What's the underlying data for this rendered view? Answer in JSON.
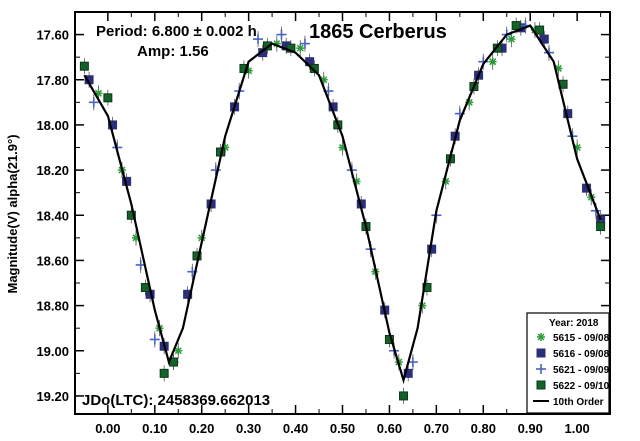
{
  "chart_data": {
    "type": "scatter",
    "title": "1865 Cerberus",
    "ylabel": "Magnitude(V) alpha(21.9°)",
    "xlabel": "",
    "xlim": [
      -0.07,
      1.07
    ],
    "ylim": [
      17.5,
      19.28
    ],
    "y_inverted": true,
    "x_ticks": [
      "0.00",
      "0.10",
      "0.20",
      "0.30",
      "0.40",
      "0.50",
      "0.60",
      "0.70",
      "0.80",
      "0.90",
      "1.00"
    ],
    "y_ticks": [
      "17.60",
      "17.80",
      "18.00",
      "18.20",
      "18.40",
      "18.60",
      "18.80",
      "19.00",
      "19.20"
    ],
    "grid": false,
    "legend_position": "bottom-right",
    "annotations": {
      "period": "Period: 6.800 ± 0.002 h",
      "amp": "Amp: 1.56",
      "jdo": "JDo(LTC): 2458369.662013"
    },
    "legend": {
      "title": "Year: 2018",
      "entries": [
        {
          "label": "5615 - 09/08",
          "marker": "asterisk",
          "color": "#2e9a3c"
        },
        {
          "label": "5616 - 09/08",
          "marker": "square",
          "color": "#2b2f7a"
        },
        {
          "label": "5621 - 09/09",
          "marker": "plus",
          "color": "#4a62c4"
        },
        {
          "label": "5622 - 09/10",
          "marker": "filled-square",
          "color": "#14612a"
        },
        {
          "label": "10th Order",
          "marker": "line",
          "color": "#000000"
        }
      ]
    },
    "fit_curve": {
      "name": "10th Order",
      "x": [
        -0.05,
        0.0,
        0.05,
        0.1,
        0.13,
        0.16,
        0.2,
        0.25,
        0.3,
        0.35,
        0.4,
        0.45,
        0.5,
        0.55,
        0.6,
        0.63,
        0.66,
        0.7,
        0.75,
        0.8,
        0.85,
        0.9,
        0.95,
        1.0,
        1.05
      ],
      "y": [
        17.78,
        17.96,
        18.35,
        18.82,
        19.05,
        18.9,
        18.52,
        18.05,
        17.72,
        17.64,
        17.68,
        17.78,
        18.05,
        18.45,
        18.92,
        19.13,
        18.9,
        18.38,
        17.98,
        17.73,
        17.6,
        17.56,
        17.72,
        18.15,
        18.42
      ]
    },
    "series": [
      {
        "name": "5615 - 09/08",
        "marker": "asterisk",
        "color": "#2e9a3c",
        "x": [
          -0.02,
          0.03,
          0.06,
          0.11,
          0.15,
          0.2,
          0.25,
          0.3,
          0.36,
          0.41,
          0.46,
          0.5,
          0.53,
          0.57,
          0.62,
          0.67,
          0.72,
          0.77,
          0.82,
          0.86,
          0.91,
          0.96,
          1.0,
          1.03
        ],
        "y": [
          17.86,
          18.2,
          18.5,
          18.9,
          19.0,
          18.5,
          18.1,
          17.76,
          17.64,
          17.66,
          17.8,
          18.1,
          18.25,
          18.65,
          19.05,
          18.8,
          18.25,
          17.9,
          17.72,
          17.62,
          17.58,
          17.75,
          18.1,
          18.32
        ]
      },
      {
        "name": "5616 - 09/08",
        "marker": "square",
        "color": "#2b2f7a",
        "x": [
          -0.04,
          0.01,
          0.04,
          0.09,
          0.12,
          0.17,
          0.22,
          0.27,
          0.33,
          0.38,
          0.43,
          0.48,
          0.54,
          0.59,
          0.64,
          0.69,
          0.74,
          0.79,
          0.84,
          0.88,
          0.93,
          0.98,
          1.02,
          1.05
        ],
        "y": [
          17.8,
          18.0,
          18.25,
          18.75,
          18.98,
          18.75,
          18.35,
          17.92,
          17.68,
          17.65,
          17.72,
          17.92,
          18.35,
          18.82,
          19.1,
          18.55,
          18.05,
          17.78,
          17.66,
          17.57,
          17.62,
          17.95,
          18.28,
          18.42
        ]
      },
      {
        "name": "5621 - 09/09",
        "marker": "plus",
        "color": "#4a62c4",
        "x": [
          -0.03,
          0.02,
          0.07,
          0.1,
          0.14,
          0.18,
          0.23,
          0.28,
          0.32,
          0.37,
          0.42,
          0.47,
          0.52,
          0.56,
          0.61,
          0.65,
          0.7,
          0.75,
          0.8,
          0.85,
          0.89,
          0.94,
          0.99,
          1.04
        ],
        "y": [
          17.9,
          18.1,
          18.62,
          18.95,
          19.05,
          18.65,
          18.2,
          17.85,
          17.62,
          17.6,
          17.64,
          17.85,
          18.2,
          18.55,
          19.0,
          19.05,
          18.4,
          17.95,
          17.72,
          17.6,
          17.56,
          17.68,
          18.05,
          18.38
        ]
      },
      {
        "name": "5622 - 09/10",
        "marker": "filled-square",
        "color": "#14612a",
        "x": [
          -0.05,
          0.0,
          0.05,
          0.08,
          0.12,
          0.14,
          0.19,
          0.24,
          0.29,
          0.34,
          0.39,
          0.44,
          0.49,
          0.55,
          0.6,
          0.63,
          0.68,
          0.73,
          0.78,
          0.83,
          0.87,
          0.92,
          0.97,
          1.05
        ],
        "y": [
          17.74,
          17.88,
          18.4,
          18.72,
          19.1,
          19.05,
          18.58,
          18.12,
          17.75,
          17.65,
          17.66,
          17.75,
          18.0,
          18.45,
          18.95,
          19.2,
          18.72,
          18.15,
          17.83,
          17.66,
          17.56,
          17.58,
          17.82,
          18.45
        ]
      }
    ]
  }
}
